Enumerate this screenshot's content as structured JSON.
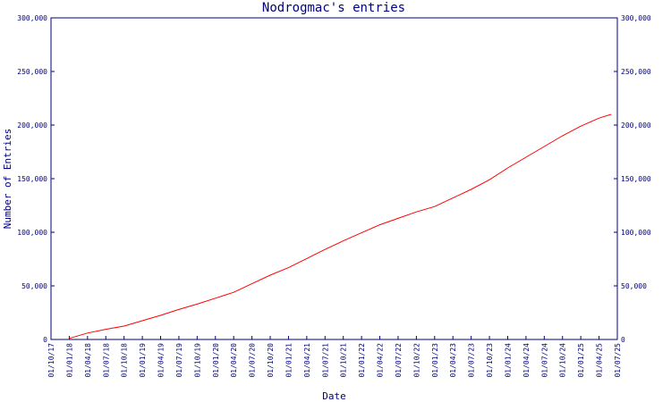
{
  "chart_data": {
    "type": "line",
    "title": "Nodrogmac's entries",
    "xlabel": "Date",
    "ylabel": "Number of Entries",
    "x_tick_labels": [
      "01/10/17",
      "01/01/18",
      "01/04/18",
      "01/07/18",
      "01/10/18",
      "01/01/19",
      "01/04/19",
      "01/07/19",
      "01/10/19",
      "01/01/20",
      "01/04/20",
      "01/07/20",
      "01/10/20",
      "01/01/21",
      "01/04/21",
      "01/07/21",
      "01/10/21",
      "01/01/22",
      "01/04/22",
      "01/07/22",
      "01/10/22",
      "01/01/23",
      "01/04/23",
      "01/07/23",
      "01/10/23",
      "01/01/24",
      "01/04/24",
      "01/07/24",
      "01/10/24",
      "01/01/25",
      "01/04/25",
      "01/07/25"
    ],
    "y_tick_labels": [
      "0",
      "50,000",
      "100,000",
      "150,000",
      "200,000",
      "250,000",
      "300,000"
    ],
    "ylim": [
      0,
      300000
    ],
    "grid": false,
    "line_color": "#ff0000",
    "axis_color": "#000080",
    "series": [
      {
        "x": [
          "01/01/18",
          "01/04/18",
          "01/07/18",
          "01/10/18",
          "01/01/19",
          "01/04/19",
          "01/07/19",
          "01/10/19",
          "01/01/20",
          "01/04/20",
          "01/07/20",
          "01/10/20",
          "01/01/21",
          "01/04/21",
          "01/07/21",
          "01/10/21",
          "01/01/22",
          "01/04/22",
          "01/07/22",
          "01/10/22",
          "01/01/23",
          "01/04/23",
          "01/07/23",
          "01/10/23",
          "01/01/24",
          "01/04/24",
          "01/07/24",
          "01/10/24",
          "01/01/25",
          "01/04/25",
          "01/06/25"
        ],
        "values": [
          1000,
          6000,
          9500,
          12500,
          17500,
          22500,
          28000,
          33000,
          38500,
          44000,
          52000,
          60000,
          67000,
          75500,
          84000,
          92000,
          99500,
          107000,
          113000,
          119000,
          124000,
          132000,
          140000,
          149000,
          160000,
          170000,
          180000,
          190000,
          199000,
          206500,
          210000
        ]
      }
    ]
  }
}
